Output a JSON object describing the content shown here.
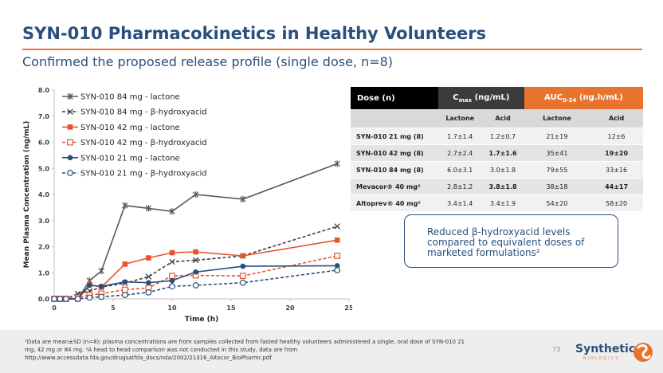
{
  "title": "SYN-010 Pharmacokinetics in Healthy Volunteers",
  "subtitle": "Confirmed the proposed release profile (single dose, n=8)",
  "chart_data": {
    "type": "line",
    "xlabel": "Time (h)",
    "ylabel": "Mean Plasma Concentration (ng/mL)",
    "xlim": [
      0,
      25
    ],
    "ylim": [
      0,
      8
    ],
    "xticks": [
      "0",
      "5",
      "10",
      "15",
      "20",
      "25"
    ],
    "yticks": [
      "0.0",
      "1.0",
      "2.0",
      "3.0",
      "4.0",
      "5.0",
      "6.0",
      "7.0",
      "8.0"
    ],
    "legend_position": "top-left",
    "series": [
      {
        "name": "SYN-010 84 mg - lactone",
        "color": "#595959",
        "dash": "solid",
        "marker": "asterisk",
        "x": [
          0,
          0.5,
          1,
          2,
          3,
          4,
          6,
          8,
          10,
          12,
          16,
          24
        ],
        "y": [
          0,
          0,
          0,
          0,
          0.7,
          1.07,
          3.58,
          3.47,
          3.35,
          4.0,
          3.82,
          5.18
        ]
      },
      {
        "name": "SYN-010 84 mg - β-hydroxyacid",
        "color": "#404040",
        "dash": "dashed",
        "marker": "x",
        "x": [
          0,
          0.5,
          1,
          2,
          3,
          4,
          6,
          8,
          10,
          12,
          16,
          24
        ],
        "y": [
          0,
          0,
          0,
          0.2,
          0.3,
          0.45,
          0.6,
          0.85,
          1.42,
          1.48,
          1.65,
          2.78
        ]
      },
      {
        "name": "SYN-010 42 mg - lactone",
        "color": "#e8532c",
        "dash": "solid",
        "marker": "square-filled",
        "x": [
          0,
          0.5,
          1,
          2,
          3,
          4,
          6,
          8,
          10,
          12,
          16,
          24
        ],
        "y": [
          0,
          0,
          0,
          0,
          0.55,
          0.45,
          1.33,
          1.57,
          1.77,
          1.8,
          1.65,
          2.25
        ]
      },
      {
        "name": "SYN-010 42 mg - β-hydroxyacid",
        "color": "#e8532c",
        "dash": "dashed",
        "marker": "square-open",
        "x": [
          0,
          0.5,
          1,
          2,
          3,
          4,
          6,
          8,
          10,
          12,
          16,
          24
        ],
        "y": [
          0,
          0,
          0,
          0.05,
          0.15,
          0.2,
          0.35,
          0.42,
          0.88,
          0.9,
          0.88,
          1.65
        ]
      },
      {
        "name": "SYN-010 21 mg - lactone",
        "color": "#2a4f7c",
        "dash": "solid",
        "marker": "circle-filled",
        "x": [
          0,
          0.5,
          1,
          2,
          3,
          4,
          6,
          8,
          10,
          12,
          16,
          24
        ],
        "y": [
          0,
          0,
          0,
          0,
          0.52,
          0.48,
          0.65,
          0.62,
          0.7,
          1.03,
          1.25,
          1.27
        ]
      },
      {
        "name": "SYN-010 21 mg - β-hydroxyacid",
        "color": "#2a4f7c",
        "dash": "dashed",
        "marker": "circle-open",
        "x": [
          0,
          0.5,
          1,
          2,
          3,
          4,
          6,
          8,
          10,
          12,
          16,
          24
        ],
        "y": [
          0,
          0,
          0,
          0,
          0.05,
          0.08,
          0.15,
          0.25,
          0.48,
          0.52,
          0.62,
          1.1
        ]
      }
    ]
  },
  "table": {
    "header_dose": "Dose (n)",
    "header_cmax_main": "C",
    "header_cmax_sub": "max",
    "header_cmax_unit": " (ng/mL)",
    "header_auc_main": "AUC",
    "header_auc_sub": "0-24",
    "header_auc_unit": " (ng.h/mL)",
    "sub_headers": [
      "Lactone",
      "Acid",
      "Lactone",
      "Acid"
    ],
    "rows": [
      {
        "label": "SYN-010 21 mg (8)",
        "cmax_lactone": "1.7±1.4",
        "cmax_acid": "1.2±0.7",
        "auc_lactone": "21±19",
        "auc_acid": "12±6"
      },
      {
        "label": "SYN-010 42 mg (8)",
        "cmax_lactone": "2.7±2.4",
        "cmax_acid": "1.7±1.6",
        "auc_lactone": "35±41",
        "auc_acid": "19±20"
      },
      {
        "label": "SYN-010 84 mg (8)",
        "cmax_lactone": "6.0±3.1",
        "cmax_acid": "3.0±1.8",
        "auc_lactone": "79±55",
        "auc_acid": "33±16"
      },
      {
        "label": "Mevacor® 40 mg²",
        "cmax_lactone": "2.8±1.2",
        "cmax_acid": "3.8±1.8",
        "auc_lactone": "38±18",
        "auc_acid": "44±17"
      },
      {
        "label": "Altoprev® 40 mg²",
        "cmax_lactone": "3.4±1.4",
        "cmax_acid": "3.4±1.9",
        "auc_lactone": "54±20",
        "auc_acid": "58±20"
      }
    ]
  },
  "callout": "Reduced β-hydroxyacid levels compared to equivalent doses of marketed formulations²",
  "footnote": {
    "line1": "¹Data are mean±SD (n=8); plasma concentrations are from samples collected from fasted healthy volunteers administered a single, oral dose of SYN-010 21",
    "line2": "mg, 42 mg or 84 mg. ²A head to head comparison was not conducted in this study, data are from",
    "line3": "http://www.accessdata.fda.gov/drugsatfda_docs/nda/2002/21316_Altocor_BioPharmr.pdf"
  },
  "page_number": "73",
  "logo": {
    "name": "Synthetic",
    "sub": "BIOLOGICS"
  },
  "colors": {
    "navy": "#2a4f7c",
    "orange": "#e8732f",
    "gray": "#595959"
  }
}
